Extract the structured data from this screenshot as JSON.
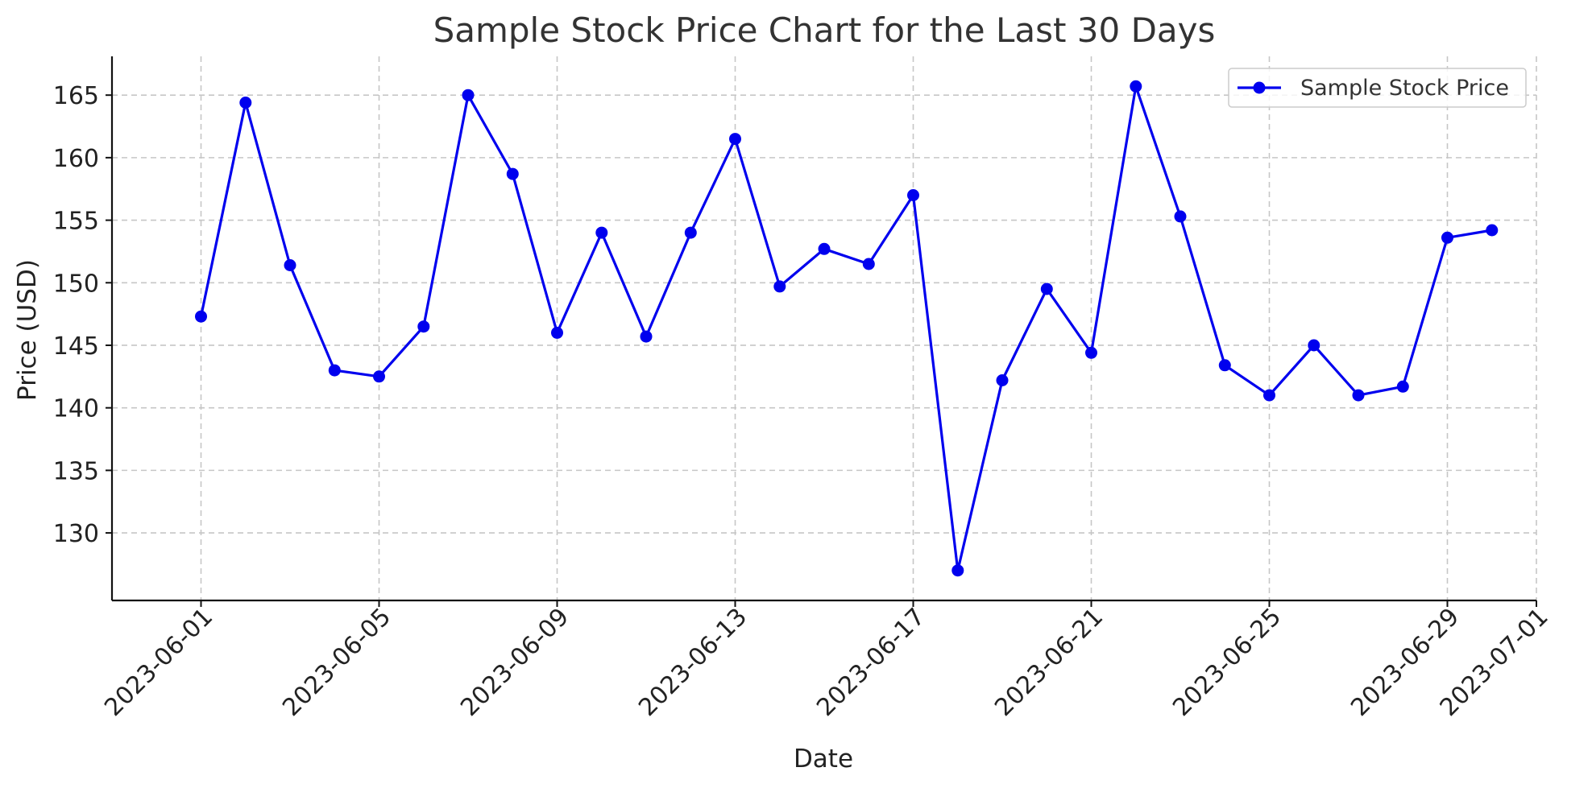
{
  "chart_data": {
    "type": "line",
    "title": "Sample Stock Price Chart for the Last 30 Days",
    "xlabel": "Date",
    "ylabel": "Price (USD)",
    "x": [
      "2023-06-01",
      "2023-06-02",
      "2023-06-03",
      "2023-06-04",
      "2023-06-05",
      "2023-06-06",
      "2023-06-07",
      "2023-06-08",
      "2023-06-09",
      "2023-06-10",
      "2023-06-11",
      "2023-06-12",
      "2023-06-13",
      "2023-06-14",
      "2023-06-15",
      "2023-06-16",
      "2023-06-17",
      "2023-06-18",
      "2023-06-19",
      "2023-06-20",
      "2023-06-21",
      "2023-06-22",
      "2023-06-23",
      "2023-06-24",
      "2023-06-25",
      "2023-06-26",
      "2023-06-27",
      "2023-06-28",
      "2023-06-29",
      "2023-06-30"
    ],
    "series": [
      {
        "name": "Sample Stock Price",
        "color": "#0000ee",
        "marker": "circle",
        "values": [
          147.3,
          164.4,
          151.4,
          143.0,
          142.5,
          146.5,
          165.0,
          158.7,
          146.0,
          154.0,
          145.7,
          154.0,
          161.5,
          149.7,
          152.7,
          151.5,
          157.0,
          127.0,
          142.2,
          149.5,
          144.4,
          165.7,
          155.3,
          143.4,
          141.0,
          145.0,
          141.0,
          141.7,
          153.6,
          154.2
        ]
      }
    ],
    "x_ticks": [
      "2023-06-01",
      "2023-06-05",
      "2023-06-09",
      "2023-06-13",
      "2023-06-17",
      "2023-06-21",
      "2023-06-25",
      "2023-06-29",
      "2023-07-01"
    ],
    "y_ticks": [
      130,
      135,
      140,
      145,
      150,
      155,
      160,
      165
    ],
    "xlim": [
      "2023-05-30",
      "2023-07-01"
    ],
    "ylim": [
      124.6,
      168.1
    ],
    "grid": true,
    "legend_position": "top-right"
  }
}
